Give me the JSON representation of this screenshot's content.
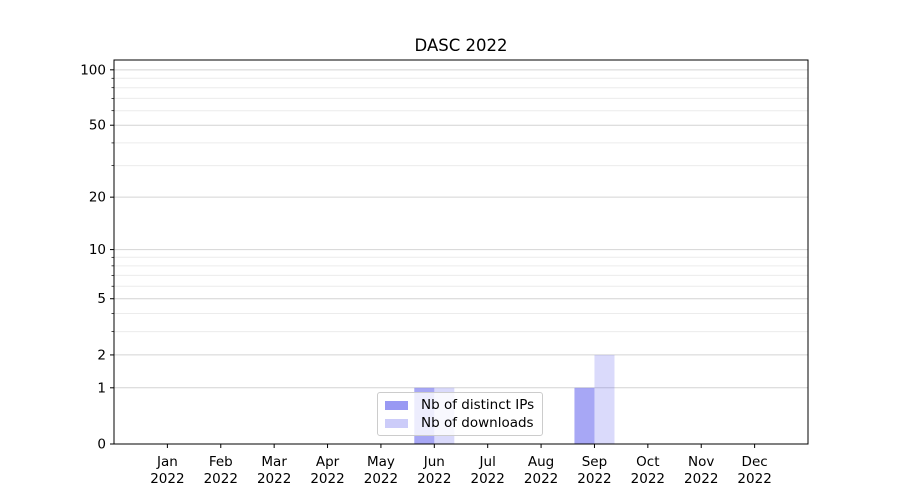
{
  "chart_data": {
    "type": "bar",
    "title": "DASC 2022",
    "categories": [
      "Jan 2022",
      "Feb 2022",
      "Mar 2022",
      "Apr 2022",
      "May 2022",
      "Jun 2022",
      "Jul 2022",
      "Aug 2022",
      "Sep 2022",
      "Oct 2022",
      "Nov 2022",
      "Dec 2022"
    ],
    "series": [
      {
        "name": "Nb of distinct IPs",
        "color": "#5050eb",
        "alpha": 0.5,
        "values": [
          0,
          0,
          0,
          0,
          0,
          1,
          0,
          0,
          1,
          0,
          0,
          0
        ]
      },
      {
        "name": "Nb of downloads",
        "color": "#5050eb",
        "alpha": 0.21,
        "values": [
          0,
          0,
          0,
          0,
          0,
          1,
          0,
          0,
          2,
          0,
          0,
          0
        ]
      }
    ],
    "xlabel": "",
    "ylabel": "",
    "yscale": "log1p",
    "ylim": [
      0,
      113
    ],
    "yticks": [
      0,
      1,
      2,
      5,
      10,
      20,
      50,
      100
    ],
    "minor_yticks": [
      3,
      4,
      6,
      7,
      8,
      9,
      30,
      40,
      60,
      70,
      80,
      90
    ],
    "grid": "horizontal",
    "legend_position": "lower center inside"
  },
  "colors": {
    "major_grid": "#d4d4d4",
    "minor_grid": "#ececec",
    "spine": "#000000",
    "background": "#ffffff"
  }
}
